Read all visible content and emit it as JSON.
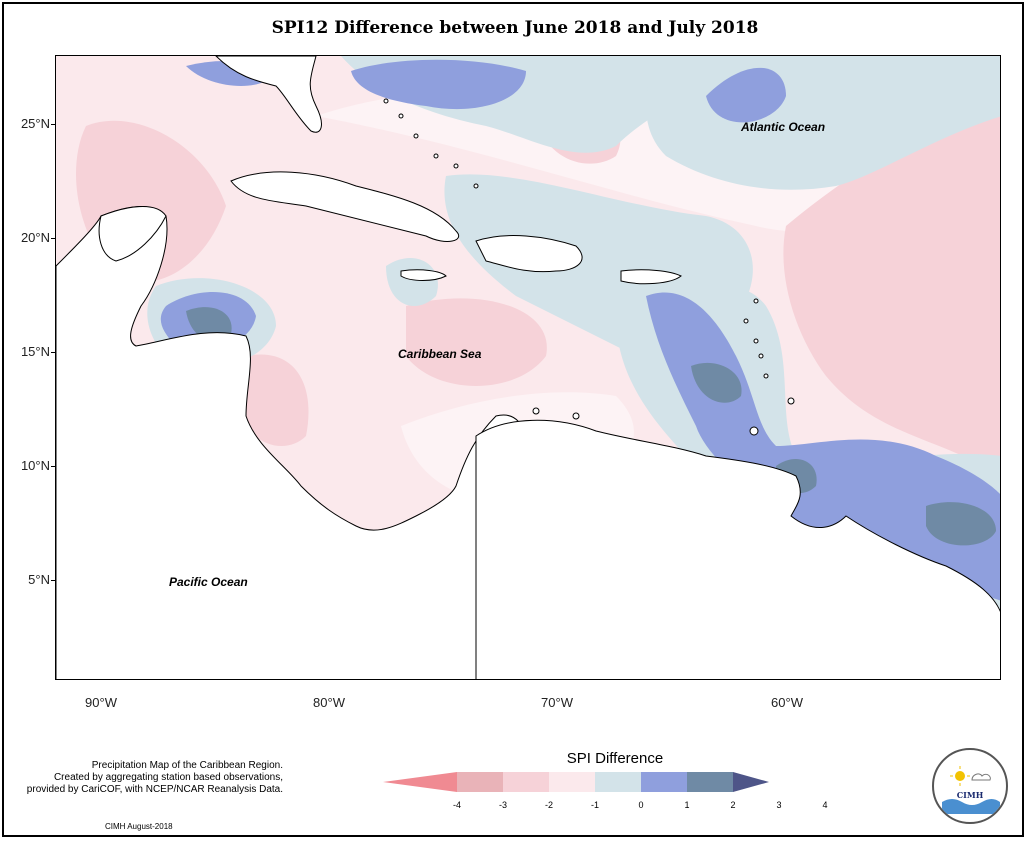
{
  "title": "SPI12 Difference between June 2018 and July 2018",
  "map": {
    "labels": {
      "atlantic": "Atlantic Ocean",
      "caribbean": "Caribbean Sea",
      "pacific": "Pacific Ocean"
    },
    "lat_ticks": [
      "25°N",
      "20°N",
      "15°N",
      "10°N",
      "5°N"
    ],
    "lon_ticks": [
      "90°W",
      "80°W",
      "70°W",
      "60°W"
    ]
  },
  "legend": {
    "title": "SPI Difference",
    "tick_labels": [
      "-4",
      "-3",
      "-2",
      "-1",
      "0",
      "1",
      "2",
      "3",
      "4"
    ],
    "colors": [
      "#f08a92",
      "#e9b3b8",
      "#f6d2d8",
      "#fbe9ec",
      "#d3e3e9",
      "#8f9fdd",
      "#6f8aa5",
      "#4e5588"
    ]
  },
  "footnote": {
    "line1": "Precipitation Map of the Caribbean Region.",
    "line2": "Created by aggregating station based observations,",
    "line3": "provided by CariCOF, with NCEP/NCAR Reanalysis Data."
  },
  "credit": "CIMH August-2018",
  "logo": {
    "name": "CIMH"
  }
}
